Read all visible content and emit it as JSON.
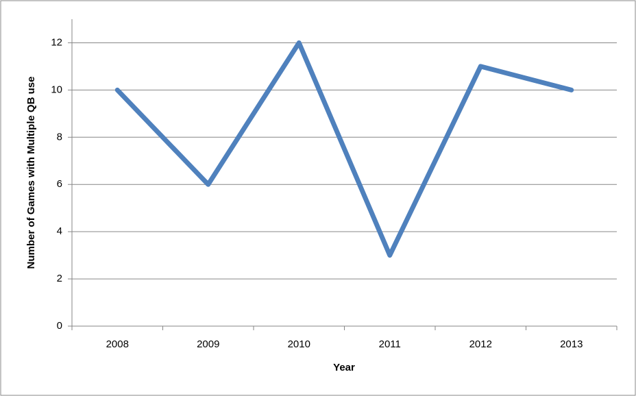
{
  "chart_data": {
    "type": "line",
    "x_label": "Year",
    "y_label": "Number of Games with Multiple QB use",
    "categories": [
      "2008",
      "2009",
      "2010",
      "2011",
      "2012",
      "2013"
    ],
    "series": [
      {
        "name": "Number of Games with Multiple QB use",
        "color": "#4f81bd",
        "values": [
          10,
          6,
          12,
          3,
          11,
          10
        ]
      }
    ],
    "ylim": [
      0,
      13
    ],
    "yticks": [
      0,
      2,
      4,
      6,
      8,
      10,
      12
    ],
    "grid": true
  }
}
